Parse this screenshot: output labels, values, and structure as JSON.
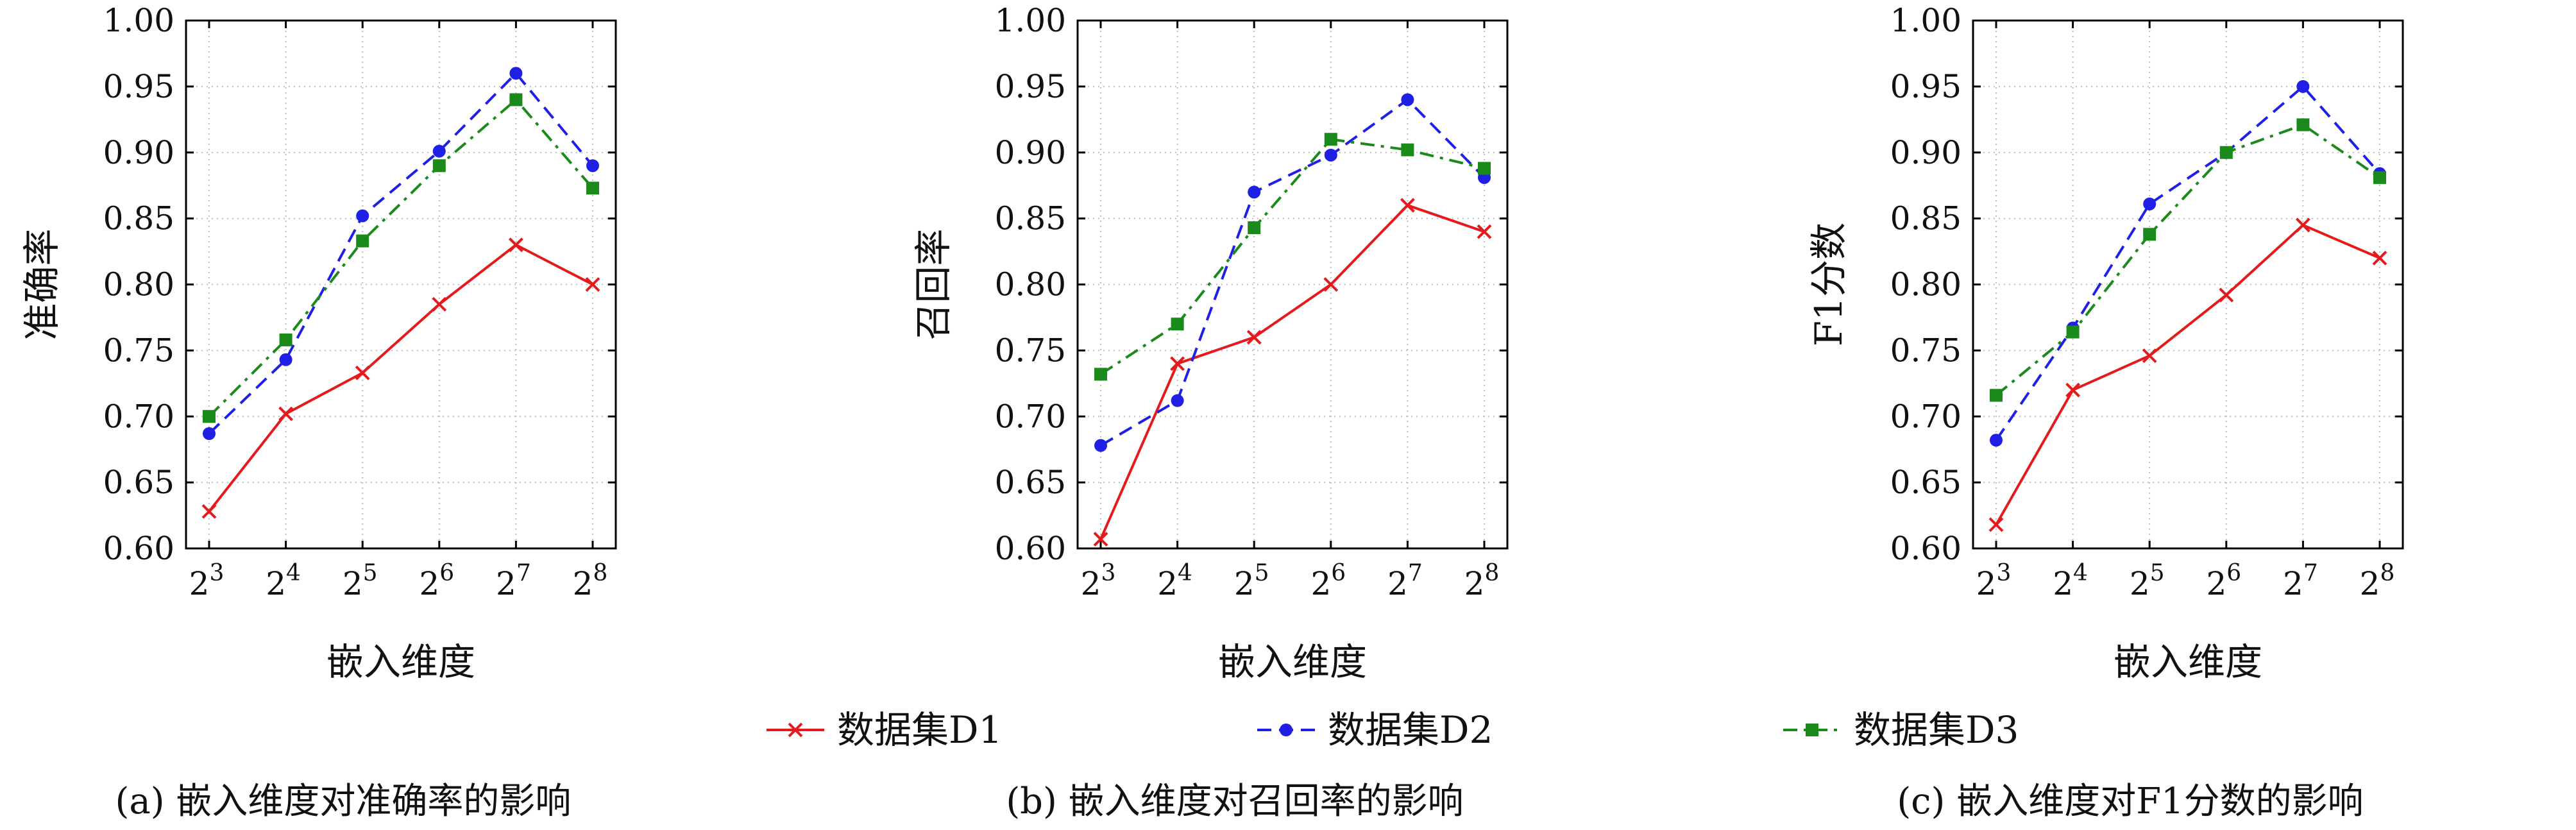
{
  "series_style": {
    "D1": {
      "color": "#e41a1c",
      "marker": "cross",
      "dash": "solid"
    },
    "D2": {
      "color": "#1f1fe5",
      "marker": "circle",
      "dash": "dashed"
    },
    "D3": {
      "color": "#1a8a1a",
      "marker": "square",
      "dash": "dashdot"
    }
  },
  "legend": {
    "items": [
      {
        "key": "D1",
        "label": "数据集D1"
      },
      {
        "key": "D2",
        "label": "数据集D2"
      },
      {
        "key": "D3",
        "label": "数据集D3"
      }
    ]
  },
  "chart_data": [
    {
      "type": "line",
      "caption": "(a) 嵌入维度对准确率的影响",
      "xlabel": "嵌入维度",
      "ylabel": "准确率",
      "x": [
        8,
        16,
        32,
        64,
        128,
        256
      ],
      "x_ticks": [
        {
          "base": "2",
          "exp": "3"
        },
        {
          "base": "2",
          "exp": "4"
        },
        {
          "base": "2",
          "exp": "5"
        },
        {
          "base": "2",
          "exp": "6"
        },
        {
          "base": "2",
          "exp": "7"
        },
        {
          "base": "2",
          "exp": "8"
        }
      ],
      "ylim": [
        0.6,
        1.0
      ],
      "y_ticks": [
        "0.60",
        "0.65",
        "0.70",
        "0.75",
        "0.80",
        "0.85",
        "0.90",
        "0.95",
        "1.00"
      ],
      "grid": true,
      "series": [
        {
          "key": "D1",
          "name": "数据集D1",
          "values": [
            0.628,
            0.702,
            0.733,
            0.785,
            0.83,
            0.8
          ]
        },
        {
          "key": "D2",
          "name": "数据集D2",
          "values": [
            0.687,
            0.743,
            0.852,
            0.901,
            0.96,
            0.89
          ]
        },
        {
          "key": "D3",
          "name": "数据集D3",
          "values": [
            0.7,
            0.758,
            0.833,
            0.89,
            0.94,
            0.873
          ]
        }
      ]
    },
    {
      "type": "line",
      "caption": "(b) 嵌入维度对召回率的影响",
      "xlabel": "嵌入维度",
      "ylabel": "召回率",
      "x": [
        8,
        16,
        32,
        64,
        128,
        256
      ],
      "x_ticks": [
        {
          "base": "2",
          "exp": "3"
        },
        {
          "base": "2",
          "exp": "4"
        },
        {
          "base": "2",
          "exp": "5"
        },
        {
          "base": "2",
          "exp": "6"
        },
        {
          "base": "2",
          "exp": "7"
        },
        {
          "base": "2",
          "exp": "8"
        }
      ],
      "ylim": [
        0.6,
        1.0
      ],
      "y_ticks": [
        "0.60",
        "0.65",
        "0.70",
        "0.75",
        "0.80",
        "0.85",
        "0.90",
        "0.95",
        "1.00"
      ],
      "grid": true,
      "series": [
        {
          "key": "D1",
          "name": "数据集D1",
          "values": [
            0.607,
            0.74,
            0.76,
            0.8,
            0.86,
            0.84
          ]
        },
        {
          "key": "D2",
          "name": "数据集D2",
          "values": [
            0.678,
            0.712,
            0.87,
            0.898,
            0.94,
            0.881
          ]
        },
        {
          "key": "D3",
          "name": "数据集D3",
          "values": [
            0.732,
            0.77,
            0.843,
            0.91,
            0.902,
            0.888
          ]
        }
      ]
    },
    {
      "type": "line",
      "caption": "(c) 嵌入维度对F1分数的影响",
      "xlabel": "嵌入维度",
      "ylabel": "F1分数",
      "x": [
        8,
        16,
        32,
        64,
        128,
        256
      ],
      "x_ticks": [
        {
          "base": "2",
          "exp": "3"
        },
        {
          "base": "2",
          "exp": "4"
        },
        {
          "base": "2",
          "exp": "5"
        },
        {
          "base": "2",
          "exp": "6"
        },
        {
          "base": "2",
          "exp": "7"
        },
        {
          "base": "2",
          "exp": "8"
        }
      ],
      "ylim": [
        0.6,
        1.0
      ],
      "y_ticks": [
        "0.60",
        "0.65",
        "0.70",
        "0.75",
        "0.80",
        "0.85",
        "0.90",
        "0.95",
        "1.00"
      ],
      "grid": true,
      "series": [
        {
          "key": "D1",
          "name": "数据集D1",
          "values": [
            0.618,
            0.72,
            0.746,
            0.792,
            0.845,
            0.82
          ]
        },
        {
          "key": "D2",
          "name": "数据集D2",
          "values": [
            0.682,
            0.767,
            0.861,
            0.9,
            0.95,
            0.884
          ]
        },
        {
          "key": "D3",
          "name": "数据集D3",
          "values": [
            0.716,
            0.764,
            0.838,
            0.9,
            0.921,
            0.881
          ]
        }
      ]
    }
  ]
}
